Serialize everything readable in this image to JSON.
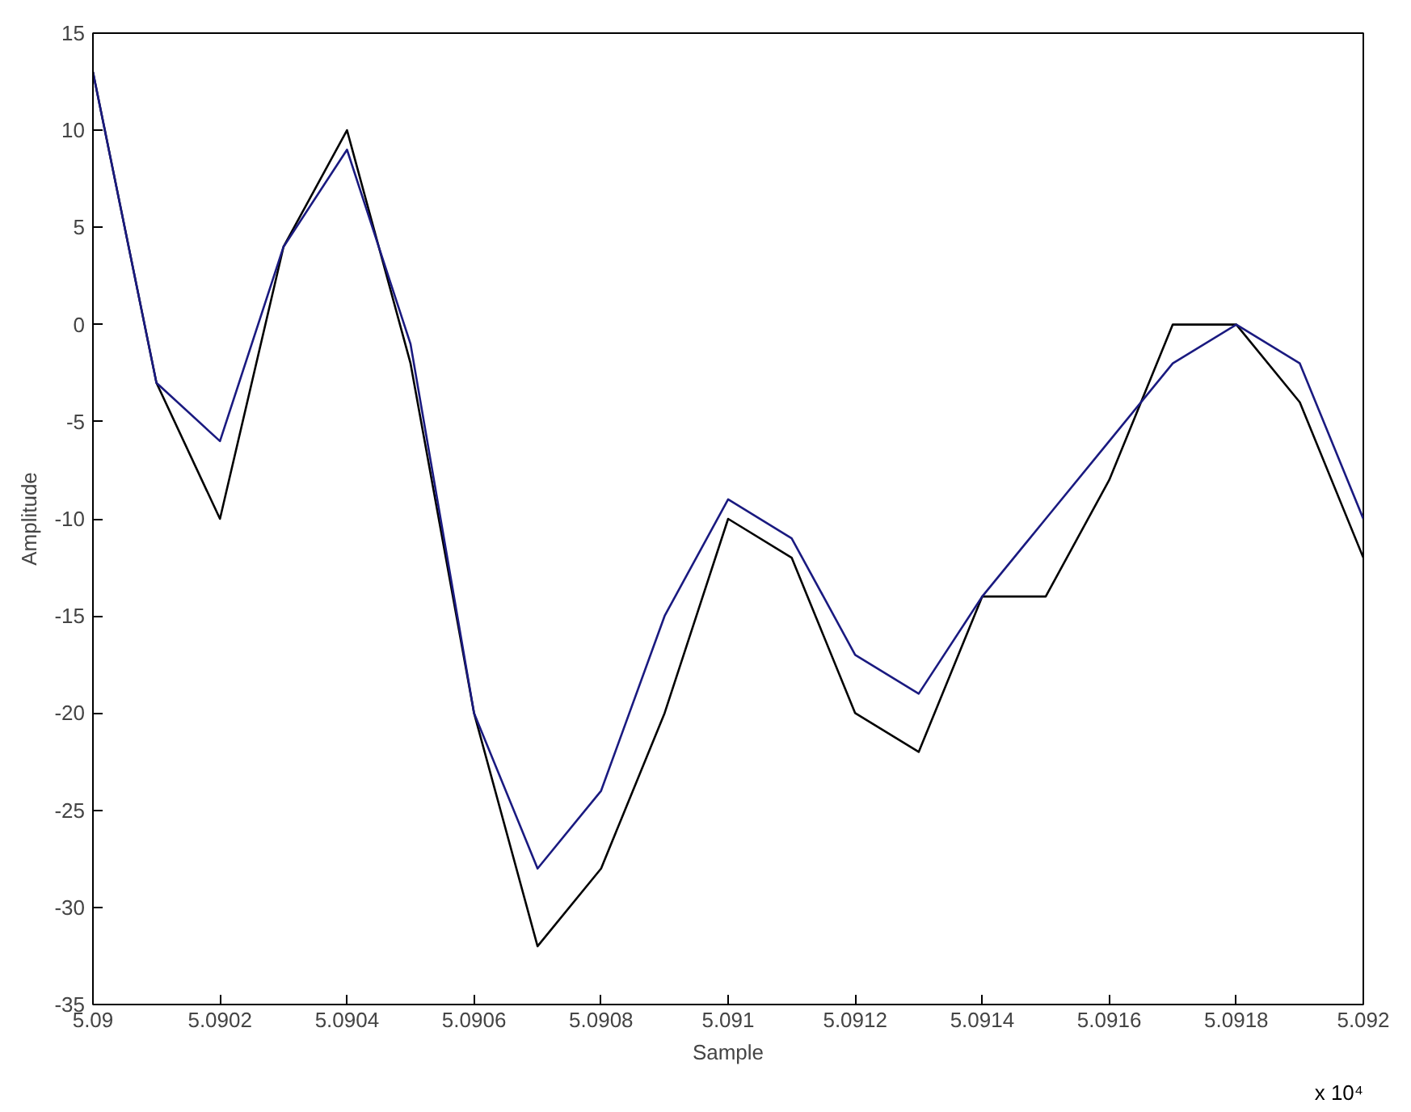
{
  "chart_data": {
    "type": "line",
    "xlabel": "Sample",
    "ylabel": "Amplitude",
    "x": [
      5.09,
      5.0901,
      5.0902,
      5.0903,
      5.0904,
      5.0905,
      5.0906,
      5.0907,
      5.0908,
      5.0909,
      5.091,
      5.0911,
      5.0912,
      5.0913,
      5.0914,
      5.0915,
      5.0916,
      5.0917,
      5.0918,
      5.0919,
      5.092
    ],
    "series": [
      {
        "color": "#000000",
        "values": [
          13,
          -3,
          -10,
          4,
          10,
          -2,
          -20,
          -32,
          -28,
          -20,
          -10,
          -12,
          -20,
          -22,
          -14,
          -14,
          -8,
          0,
          0,
          -4,
          -12
        ]
      },
      {
        "color": "#1a1a80",
        "values": [
          13,
          -3,
          -6,
          4,
          9,
          -1,
          -20,
          -28,
          -24,
          -15,
          -9,
          -11,
          -17,
          -19,
          -14,
          -10,
          -6,
          -2,
          0,
          -2,
          -10
        ]
      }
    ],
    "xlim": [
      5.09,
      5.092
    ],
    "ylim": [
      -35,
      15
    ],
    "xticks": [
      5.09,
      5.0902,
      5.0904,
      5.0906,
      5.0908,
      5.091,
      5.0912,
      5.0914,
      5.0916,
      5.0918,
      5.092
    ],
    "yticks": [
      -35,
      -30,
      -25,
      -20,
      -15,
      -10,
      -5,
      0,
      5,
      10,
      15
    ],
    "annotations": [
      "x 10⁴"
    ]
  }
}
